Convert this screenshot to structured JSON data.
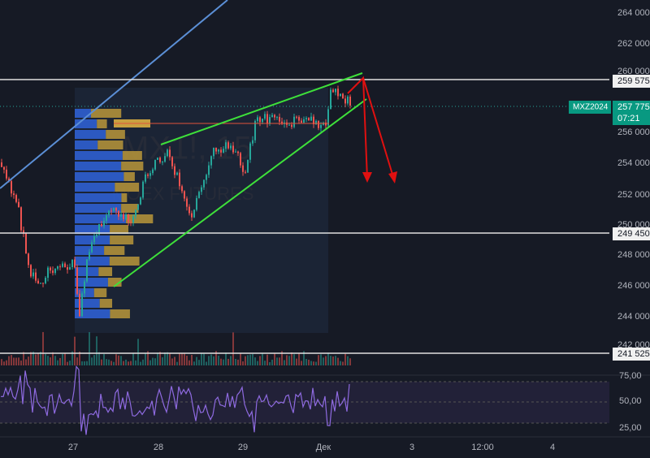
{
  "watermark": {
    "symbol": "MX1!, 15",
    "exchange": "MOEX FUTURES"
  },
  "price_axis": {
    "ticks": [
      "264 000",
      "262 000",
      "260 000",
      "256 000",
      "254 000",
      "252 000",
      "250 000",
      "248 000",
      "246 000",
      "244 000",
      "242 000"
    ]
  },
  "price_tags": [
    {
      "label": "259 575"
    },
    {
      "label": "249 450"
    },
    {
      "label": "241 525"
    }
  ],
  "current": {
    "symbol": "MXZ2024",
    "price": "257 775",
    "countdown": "07:21"
  },
  "rsi_axis": {
    "ticks": [
      "75,00",
      "50,00",
      "25,00"
    ]
  },
  "time_axis": {
    "ticks": [
      "27",
      "28",
      "29",
      "Дек",
      "3",
      "12:00",
      "4"
    ]
  }
}
